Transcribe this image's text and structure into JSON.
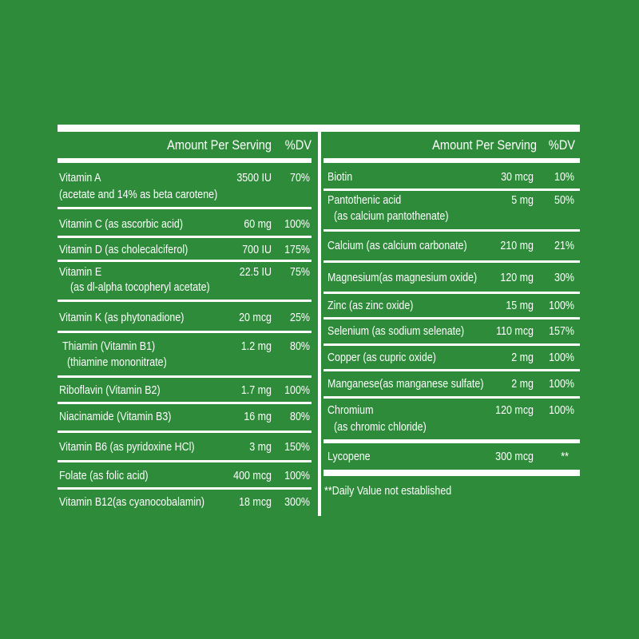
{
  "header": {
    "amount_label": "Amount Per Serving",
    "dv_label": "%DV"
  },
  "left": {
    "rows": [
      {
        "name": "Vitamin A",
        "sub": "(acetate and 14% as beta carotene)",
        "amount": "3500 IU",
        "dv": "70%"
      },
      {
        "name": "Vitamin C (as ascorbic acid)",
        "sub": "",
        "amount": "60 mg",
        "dv": "100%"
      },
      {
        "name": "Vitamin D (as cholecalciferol)",
        "sub": "",
        "amount": "700 IU",
        "dv": "175%"
      },
      {
        "name": "Vitamin E",
        "sub": "(as dl-alpha tocopheryl acetate)",
        "amount": "22.5 IU",
        "dv": "75%"
      },
      {
        "name": "Vitamin K (as phytonadione)",
        "sub": "",
        "amount": "20 mcg",
        "dv": "25%"
      },
      {
        "name": "Thiamin (Vitamin B1)",
        "sub": "(thiamine mononitrate)",
        "amount": "1.2 mg",
        "dv": "80%"
      },
      {
        "name": "Riboflavin (Vitamin B2)",
        "sub": "",
        "amount": "1.7 mg",
        "dv": "100%"
      },
      {
        "name": "Niacinamide (Vitamin B3)",
        "sub": "",
        "amount": "16 mg",
        "dv": "80%"
      },
      {
        "name": "Vitamin B6 (as pyridoxine HCl)",
        "sub": "",
        "amount": "3 mg",
        "dv": "150%"
      },
      {
        "name": "Folate (as folic acid)",
        "sub": "",
        "amount": "400 mcg",
        "dv": "100%"
      },
      {
        "name": "Vitamin B12(as cyanocobalamin)",
        "sub": "",
        "amount": "18 mcg",
        "dv": "300%"
      }
    ]
  },
  "right": {
    "rows": [
      {
        "name": "Biotin",
        "sub": "",
        "amount": "30 mcg",
        "dv": "10%"
      },
      {
        "name": "Pantothenic acid",
        "sub": "(as calcium pantothenate)",
        "amount": "5 mg",
        "dv": "50%"
      },
      {
        "name": "Calcium (as calcium carbonate)",
        "sub": "",
        "amount": "210 mg",
        "dv": "21%"
      },
      {
        "name": "Magnesium(as magnesium oxide)",
        "sub": "",
        "amount": "120 mg",
        "dv": "30%"
      },
      {
        "name": "Zinc (as zinc oxide)",
        "sub": "",
        "amount": "15 mg",
        "dv": "100%"
      },
      {
        "name": "Selenium (as sodium selenate)",
        "sub": "",
        "amount": "110 mcg",
        "dv": "157%"
      },
      {
        "name": "Copper (as cupric oxide)",
        "sub": "",
        "amount": "2 mg",
        "dv": "100%"
      },
      {
        "name": "Manganese(as manganese sulfate)",
        "sub": "",
        "amount": "2 mg",
        "dv": "100%"
      },
      {
        "name": "Chromium",
        "sub": "(as chromic chloride)",
        "amount": "120 mcg",
        "dv": "100%"
      },
      {
        "name": "Lycopene",
        "sub": "",
        "amount": "300 mcg",
        "dv": "**"
      }
    ]
  },
  "footnote": "**Daily Value not established"
}
